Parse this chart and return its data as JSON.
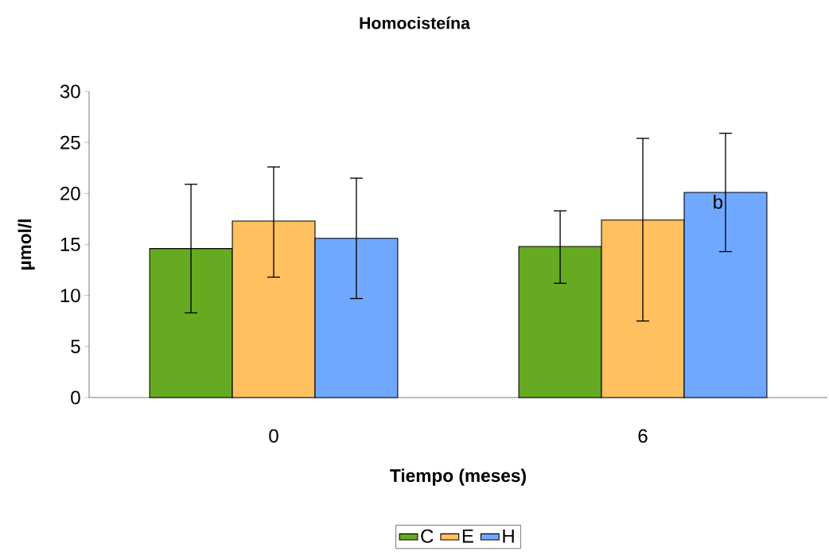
{
  "chart_data": {
    "type": "bar",
    "title": "Homocisteína",
    "xlabel": "Tiempo (meses)",
    "ylabel": "µmol/l",
    "categories": [
      "0",
      "6"
    ],
    "series": [
      {
        "name": "C",
        "color": "#66aa22",
        "values": [
          14.6,
          14.8
        ],
        "errors": [
          [
            8.3,
            20.9
          ],
          [
            11.2,
            18.3
          ]
        ]
      },
      {
        "name": "E",
        "color": "#ffc060",
        "values": [
          17.3,
          17.4
        ],
        "errors": [
          [
            11.8,
            22.6
          ],
          [
            7.5,
            25.4
          ]
        ]
      },
      {
        "name": "H",
        "color": "#70a8ff",
        "values": [
          15.6,
          20.1
        ],
        "errors": [
          [
            9.7,
            21.5
          ],
          [
            14.3,
            25.9
          ]
        ]
      }
    ],
    "ylim": [
      0,
      30
    ],
    "yticks": [
      0,
      5,
      10,
      15,
      20,
      25,
      30
    ],
    "annotations": [
      "b"
    ],
    "legend": "bottom",
    "grid": false
  }
}
